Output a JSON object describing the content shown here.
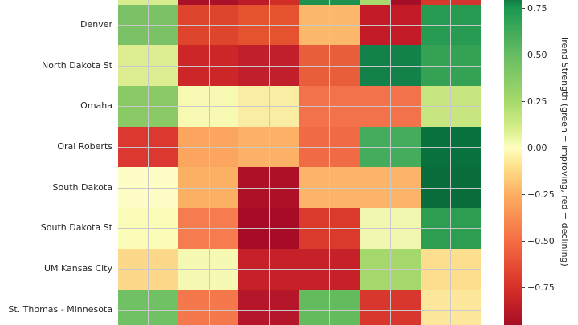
{
  "chart_data": {
    "type": "heatmap",
    "x_axis_labels_visible": false,
    "note_visible_region": "top row and bottom row partially cut off by screenshot crop",
    "value_range": [
      -1,
      1
    ],
    "rows": [
      {
        "label": "Denver",
        "colors": [
          "#7ac265",
          "#de452c",
          "#e5522f",
          "#fdb96b",
          "#c21a27",
          "#279b52"
        ],
        "values": [
          0.4,
          -0.7,
          -0.65,
          -0.25,
          -0.85,
          0.7
        ]
      },
      {
        "label": "North Dakota St",
        "colors": [
          "#dcee91",
          "#cd2628",
          "#c01f2b",
          "#e95e3a",
          "#12814a",
          "#34a155"
        ],
        "values": [
          0.15,
          -0.8,
          -0.85,
          -0.6,
          0.85,
          0.65
        ]
      },
      {
        "label": "Omaha",
        "colors": [
          "#8aca66",
          "#f8fab3",
          "#fbeca4",
          "#f3714b",
          "#f3714b",
          "#c8e67f"
        ],
        "values": [
          0.35,
          0.05,
          -0.05,
          -0.5,
          -0.5,
          0.2
        ]
      },
      {
        "label": "Oral Roberts",
        "colors": [
          "#da3831",
          "#fba55f",
          "#fdb167",
          "#f06a45",
          "#44ad5d",
          "#08713d"
        ],
        "values": [
          -0.7,
          -0.3,
          -0.25,
          -0.55,
          0.55,
          0.95
        ]
      },
      {
        "label": "South Dakota",
        "colors": [
          "#fdfdc5",
          "#fbb063",
          "#ae1127",
          "#fcb468",
          "#fcb468",
          "#086d3a"
        ],
        "values": [
          0.0,
          -0.25,
          -0.9,
          -0.25,
          -0.25,
          0.95
        ]
      },
      {
        "label": "South Dakota St",
        "colors": [
          "#fafcb8",
          "#f57c4e",
          "#a70c26",
          "#d93a2c",
          "#f1f7ae",
          "#2d9d52"
        ],
        "values": [
          0.05,
          -0.45,
          -0.95,
          -0.7,
          0.05,
          0.7
        ]
      },
      {
        "label": "UM Kansas City",
        "colors": [
          "#fdd88a",
          "#f5f9b2",
          "#c62129",
          "#c62129",
          "#a4d76c",
          "#fddd8e"
        ],
        "values": [
          -0.15,
          0.05,
          -0.8,
          -0.8,
          0.3,
          -0.1
        ]
      },
      {
        "label": "St. Thomas - Minnesota",
        "colors": [
          "#70c064",
          "#f5784d",
          "#b6162a",
          "#63bb5e",
          "#d7372d",
          "#fde79c"
        ],
        "values": [
          0.45,
          -0.45,
          -0.9,
          0.45,
          -0.75,
          -0.05
        ]
      }
    ],
    "partial_top_row": {
      "colors": [
        "#d7eb8f",
        "#d7eb8f",
        "#a81127",
        "#a81127",
        "#bc1b27",
        "#d02f28",
        "#1c9150",
        "#1c9150",
        "#a8d96d",
        "#a60d26",
        "#d73a2d",
        "#d23530"
      ],
      "values": [
        0.15,
        0.15,
        -0.95,
        -0.95,
        -0.85,
        -0.75,
        0.75,
        0.75,
        0.3,
        -0.95,
        -0.7,
        -0.7
      ]
    }
  },
  "colorbar": {
    "title": "Trend Strength (green = improving, red = declining)",
    "tick_labels": [
      "0.75",
      "0.50",
      "0.25",
      "0.00",
      "−0.25",
      "−0.50",
      "−0.75"
    ],
    "tick_values": [
      0.75,
      0.5,
      0.25,
      0,
      -0.25,
      -0.5,
      -0.75
    ],
    "gradient": [
      {
        "v": 0.8,
        "color": "#117a43"
      },
      {
        "v": 0.75,
        "color": "#1a9850"
      },
      {
        "v": 0.5,
        "color": "#66bd63"
      },
      {
        "v": 0.25,
        "color": "#a6d96a"
      },
      {
        "v": 0.1,
        "color": "#d9ef8b"
      },
      {
        "v": 0.0,
        "color": "#ffffbf"
      },
      {
        "v": -0.1,
        "color": "#fee08b"
      },
      {
        "v": -0.25,
        "color": "#fdae61"
      },
      {
        "v": -0.5,
        "color": "#f46d43"
      },
      {
        "v": -0.75,
        "color": "#d73027"
      },
      {
        "v": -0.95,
        "color": "#a50e26"
      }
    ]
  },
  "style": {
    "grid_color": "#c9c9c9",
    "text_color": "#262626",
    "background": "#ffffff"
  }
}
